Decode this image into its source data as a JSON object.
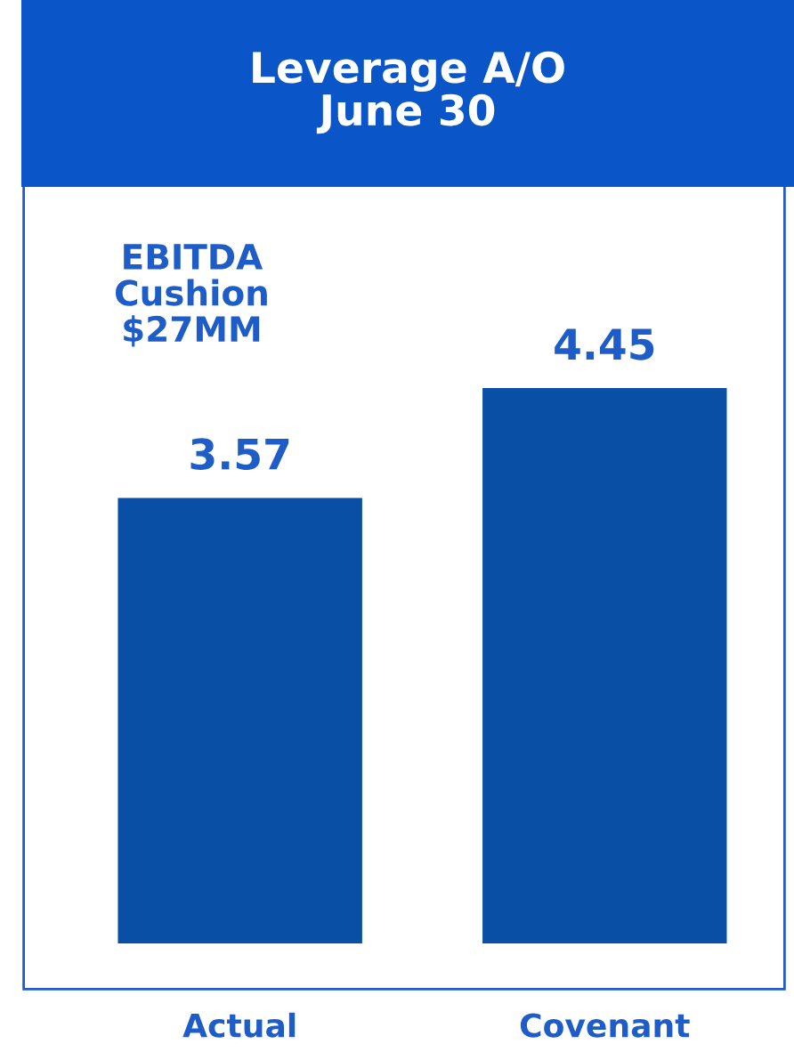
{
  "chart_data": {
    "type": "bar",
    "title": "Leverage A/O\nJune 30",
    "categories": [
      "Actual",
      "Covenant"
    ],
    "values": [
      3.57,
      4.45
    ],
    "color": "#0a4fa6",
    "data_labels": true,
    "annotations": [
      "EBITDA\nCushion\n$27MM"
    ],
    "grid": false,
    "legend": false
  }
}
